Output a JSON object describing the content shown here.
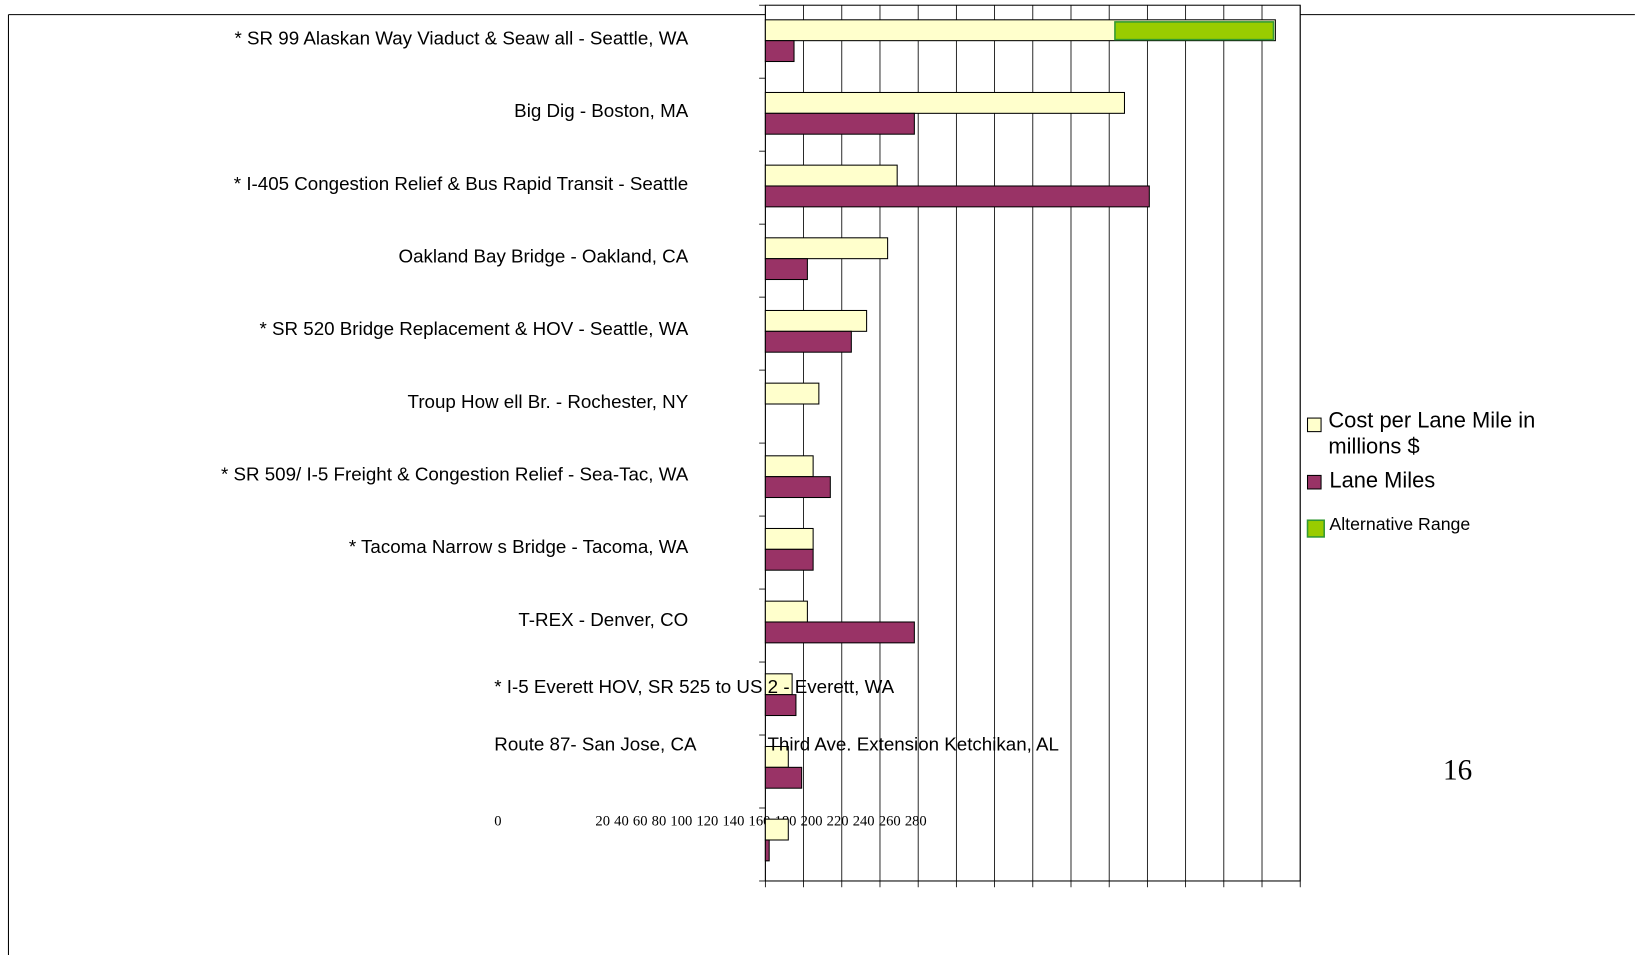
{
  "chart_data": {
    "type": "bar",
    "categories": [
      "* SR 99 Alaskan Way Viaduct & Seaw all - Seattle, WA",
      "Big Dig - Boston, MA",
      "* I-405 Congestion Relief & Bus Rapid Transit - Seattle",
      "Oakland Bay Bridge - Oakland, CA",
      "* SR 520 Bridge Replacement & HOV - Seattle, WA",
      "Troup How ell Br. - Rochester, NY",
      "* SR 509/ I-5 Freight & Congestion Relief - Sea-Tac, WA",
      "* Tacoma Narrow s Bridge - Tacoma, WA",
      "T-REX - Denver, CO",
      "* I-5 Everett HOV, SR 525 to US 2 - Everett, WA",
      "Route 87- San Jose, CA",
      "Third Ave. Extension Ketchikan, AL"
    ],
    "series": [
      {
        "name": "Cost per Lane Mile in millions $",
        "color": "#ffffcc",
        "values": [
          267,
          188,
          69,
          64,
          53,
          28,
          25,
          25,
          22,
          14,
          12,
          12
        ]
      },
      {
        "name": "Lane Miles",
        "color": "#993366",
        "values": [
          15,
          78,
          201,
          22,
          45,
          null,
          34,
          25,
          78,
          16,
          19,
          2
        ]
      },
      {
        "name": "Alternative Range",
        "color": "#99cc00",
        "values": [
          [
            183,
            266
          ],
          null,
          null,
          null,
          null,
          null,
          null,
          null,
          null,
          null,
          null,
          null
        ]
      }
    ],
    "xlim": [
      0,
      280
    ],
    "xticks": [
      0,
      20,
      40,
      60,
      80,
      100,
      120,
      140,
      160,
      180,
      200,
      220,
      240,
      260,
      280
    ],
    "grid": true,
    "page_number": "16"
  }
}
